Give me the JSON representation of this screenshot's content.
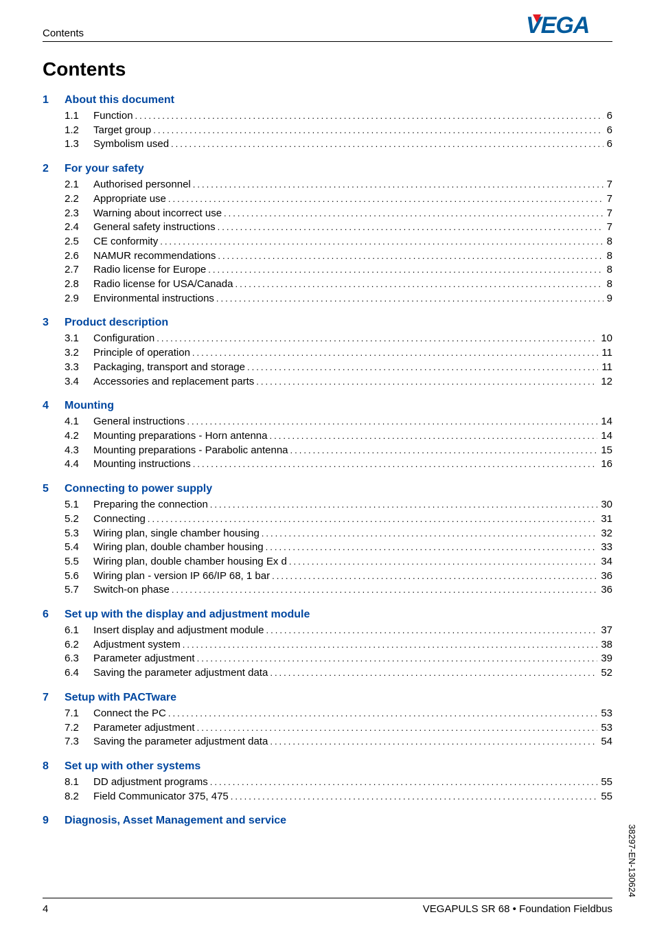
{
  "colors": {
    "link": "#0047a0",
    "logo_text": "#005a9c",
    "logo_accent": "#e31b23",
    "rule": "#000000",
    "text": "#000000",
    "background": "#ffffff"
  },
  "typography": {
    "body_fontsize_pt": 11,
    "title_fontsize_pt": 20,
    "chapter_fontsize_pt": 12,
    "font_family": "Arial"
  },
  "running_head": "Contents",
  "logo_text": "VEGA",
  "title": "Contents",
  "chapters": [
    {
      "num": "1",
      "title": "About this document",
      "entries": [
        {
          "num": "1.1",
          "label": "Function",
          "page": "6"
        },
        {
          "num": "1.2",
          "label": "Target group",
          "page": "6"
        },
        {
          "num": "1.3",
          "label": "Symbolism used",
          "page": "6"
        }
      ]
    },
    {
      "num": "2",
      "title": "For your safety",
      "entries": [
        {
          "num": "2.1",
          "label": "Authorised personnel",
          "page": "7"
        },
        {
          "num": "2.2",
          "label": "Appropriate use",
          "page": "7"
        },
        {
          "num": "2.3",
          "label": "Warning about incorrect use",
          "page": "7"
        },
        {
          "num": "2.4",
          "label": "General safety instructions",
          "page": "7"
        },
        {
          "num": "2.5",
          "label": "CE conformity",
          "page": "8"
        },
        {
          "num": "2.6",
          "label": "NAMUR recommendations",
          "page": "8"
        },
        {
          "num": "2.7",
          "label": "Radio license for Europe",
          "page": "8"
        },
        {
          "num": "2.8",
          "label": "Radio license for USA/Canada",
          "page": "8"
        },
        {
          "num": "2.9",
          "label": "Environmental instructions",
          "page": "9"
        }
      ]
    },
    {
      "num": "3",
      "title": "Product description",
      "entries": [
        {
          "num": "3.1",
          "label": "Configuration",
          "page": "10"
        },
        {
          "num": "3.2",
          "label": "Principle of operation",
          "page": "11"
        },
        {
          "num": "3.3",
          "label": "Packaging, transport and storage",
          "page": "11"
        },
        {
          "num": "3.4",
          "label": "Accessories and replacement parts",
          "page": "12"
        }
      ]
    },
    {
      "num": "4",
      "title": "Mounting",
      "entries": [
        {
          "num": "4.1",
          "label": "General instructions",
          "page": "14"
        },
        {
          "num": "4.2",
          "label": "Mounting preparations - Horn antenna",
          "page": "14"
        },
        {
          "num": "4.3",
          "label": "Mounting preparations - Parabolic antenna",
          "page": "15"
        },
        {
          "num": "4.4",
          "label": "Mounting instructions",
          "page": "16"
        }
      ]
    },
    {
      "num": "5",
      "title": "Connecting to power supply",
      "entries": [
        {
          "num": "5.1",
          "label": "Preparing the connection",
          "page": "30"
        },
        {
          "num": "5.2",
          "label": "Connecting",
          "page": "31"
        },
        {
          "num": "5.3",
          "label": "Wiring plan, single chamber housing",
          "page": "32"
        },
        {
          "num": "5.4",
          "label": "Wiring plan, double chamber housing",
          "page": "33"
        },
        {
          "num": "5.5",
          "label": "Wiring plan, double chamber housing Ex d",
          "page": "34"
        },
        {
          "num": "5.6",
          "label": "Wiring plan - version IP 66/IP 68, 1 bar",
          "page": "36"
        },
        {
          "num": "5.7",
          "label": "Switch-on phase",
          "page": "36"
        }
      ]
    },
    {
      "num": "6",
      "title": "Set up with the display and adjustment module",
      "entries": [
        {
          "num": "6.1",
          "label": "Insert display and adjustment module",
          "page": "37"
        },
        {
          "num": "6.2",
          "label": "Adjustment system",
          "page": "38"
        },
        {
          "num": "6.3",
          "label": "Parameter adjustment",
          "page": "39"
        },
        {
          "num": "6.4",
          "label": "Saving the parameter adjustment data",
          "page": "52"
        }
      ]
    },
    {
      "num": "7",
      "title": "Setup with PACTware",
      "entries": [
        {
          "num": "7.1",
          "label": "Connect the PC",
          "page": "53"
        },
        {
          "num": "7.2",
          "label": "Parameter adjustment",
          "page": "53"
        },
        {
          "num": "7.3",
          "label": "Saving the parameter adjustment data",
          "page": "54"
        }
      ]
    },
    {
      "num": "8",
      "title": "Set up with other systems",
      "entries": [
        {
          "num": "8.1",
          "label": "DD adjustment programs",
          "page": "55"
        },
        {
          "num": "8.2",
          "label": "Field Communicator 375, 475",
          "page": "55"
        }
      ]
    },
    {
      "num": "9",
      "title": "Diagnosis, Asset Management and service",
      "entries": []
    }
  ],
  "footer": {
    "page_number": "4",
    "text": "VEGAPULS SR 68 • Foundation Fieldbus"
  },
  "side_doc_id": "38297-EN-130624"
}
